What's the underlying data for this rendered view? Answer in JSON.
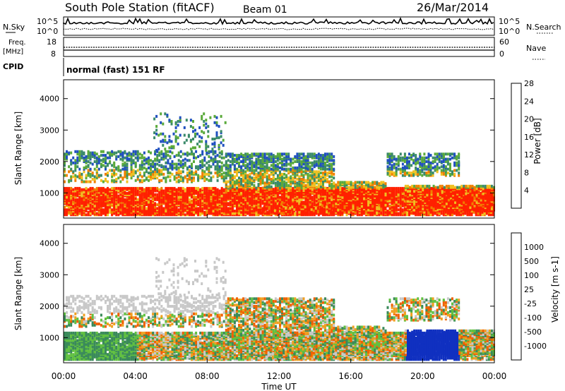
{
  "header": {
    "station": "South Pole Station (fitACF)",
    "beam": "Beam 01",
    "date": "26/Mar/2014"
  },
  "top_panels": {
    "nsky_label": "N.Sky",
    "nsearch_label": "N.Search",
    "noise_left_ticks": [
      "10^5",
      "10^0"
    ],
    "noise_right_ticks": [
      "10^5",
      "10^0"
    ],
    "freq_label_line1": "Freq.",
    "freq_label_line2": "[MHz]",
    "freq_ticks": [
      "18",
      "8"
    ],
    "nave_label": "Nave",
    "nave_ticks": [
      "60",
      "0"
    ],
    "cpid_label": "CPID",
    "cpid_text": "normal (fast) 151 RF"
  },
  "chart_data": [
    {
      "type": "heatmap",
      "title": "",
      "ylabel": "Slant Range [km]",
      "xlabel": "",
      "x": [
        "00:00",
        "04:00",
        "08:00",
        "12:00",
        "16:00",
        "20:00",
        "00:00"
      ],
      "y_ticks": [
        1000,
        2000,
        3000,
        4000
      ],
      "ylim": [
        200,
        4600
      ],
      "colorbar": {
        "label": "Power [dB]",
        "ticks": [
          "4",
          "8",
          "12",
          "16",
          "20",
          "24",
          "28"
        ],
        "colors": [
          "#1010ff",
          "#2050c0",
          "#3a8a6a",
          "#5aaa3a",
          "#f0c020",
          "#f08000",
          "#ff2000"
        ]
      }
    },
    {
      "type": "heatmap",
      "title": "",
      "ylabel": "Slant Range [km]",
      "xlabel": "Time UT",
      "x": [
        "00:00",
        "04:00",
        "08:00",
        "12:00",
        "16:00",
        "20:00",
        "00:00"
      ],
      "y_ticks": [
        1000,
        2000,
        3000,
        4000
      ],
      "ylim": [
        200,
        4600
      ],
      "colorbar": {
        "label": "Velocity [m s-1]",
        "ticks": [
          "1000",
          "500",
          "100",
          "25",
          "-25",
          "-100",
          "-500",
          "-1000"
        ],
        "colors": [
          "#1030c0",
          "#2a60a0",
          "#3a8a5a",
          "#60c040",
          "#c8c8c8",
          "#f0a020",
          "#f06000",
          "#ff1a00",
          "#e00000"
        ]
      }
    }
  ],
  "x_axis": {
    "ticks": [
      "00:00",
      "04:00",
      "08:00",
      "12:00",
      "16:00",
      "20:00",
      "00:00"
    ],
    "label": "Time UT"
  }
}
